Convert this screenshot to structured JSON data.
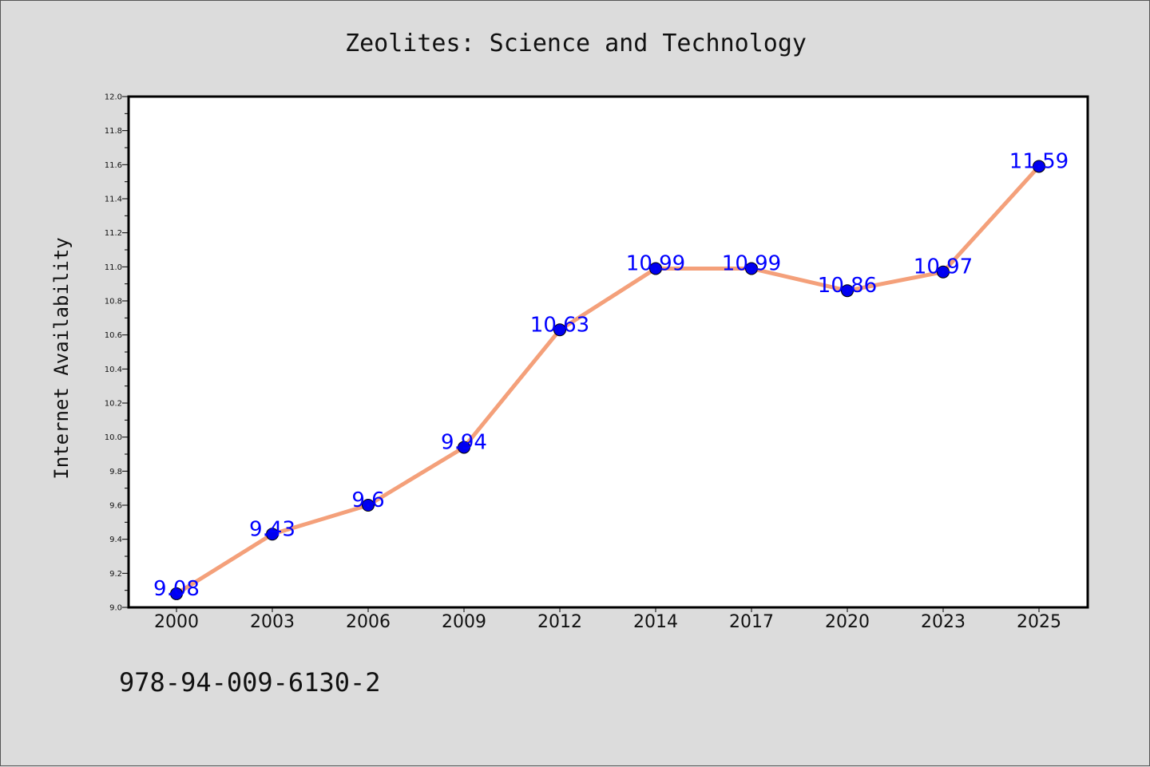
{
  "chart_data": {
    "type": "line",
    "title": "Zeolites: Science and Technology",
    "ylabel": "Internet Availability",
    "xlabel": "",
    "categories": [
      "2000",
      "2003",
      "2006",
      "2009",
      "2012",
      "2014",
      "2017",
      "2020",
      "2023",
      "2025"
    ],
    "values": [
      9.08,
      9.43,
      9.6,
      9.94,
      10.63,
      10.99,
      10.99,
      10.86,
      10.97,
      11.59
    ],
    "data_labels": [
      "9.08",
      "9.43",
      "9.6",
      "9.94",
      "10.63",
      "10.99",
      "10.99",
      "10.86",
      "10.97",
      "11.59"
    ],
    "ylim": [
      9.0,
      12.0
    ],
    "yticks": [
      "9.0",
      "9.2",
      "9.4",
      "9.6",
      "9.8",
      "10.0",
      "10.2",
      "10.4",
      "10.6",
      "10.8",
      "11.0",
      "11.2",
      "11.4",
      "11.6",
      "11.8",
      "12.0"
    ],
    "grid": false,
    "line_color": "#f4a07a",
    "marker_color": "#0000ee",
    "label_color": "#0000ff",
    "background_color": "#dcdcdc",
    "plot_background_color": "#ffffff"
  },
  "footer": {
    "isbn": "978-94-009-6130-2"
  }
}
